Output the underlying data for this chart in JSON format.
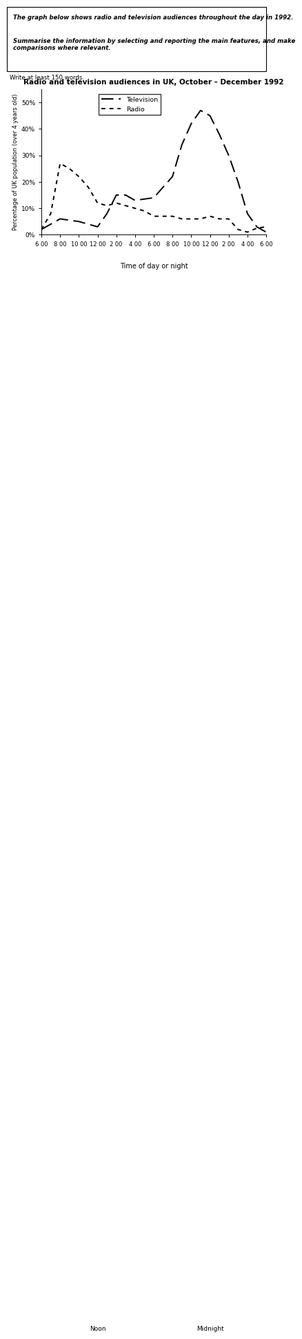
{
  "title": "Radio and television audiences in UK, October – December 1992",
  "xlabel": "Time of day or night",
  "ylabel": "Percentage of UK population (over 4 years old)",
  "prompt_text1": "The graph below shows radio and television audiences throughout the day in 1992.",
  "prompt_text2": "Summarise the information by selecting and reporting the main features, and make\ncomparisons where relevant.",
  "subtext": "Write at least 150 words.",
  "ylim": [
    0,
    55
  ],
  "yticks": [
    0,
    10,
    20,
    30,
    40,
    50
  ],
  "ytick_labels": [
    "0%",
    "10%",
    "20%",
    "30%",
    "40%",
    "50%"
  ],
  "tv_x_points": [
    0,
    0.5,
    1,
    1.5,
    2,
    2.5,
    3,
    3.5,
    4,
    4.5,
    5,
    5.5,
    6,
    6.5,
    7,
    7.5,
    8,
    8.5,
    9,
    9.5,
    10,
    10.5,
    11,
    11.5,
    12
  ],
  "tv_y_points": [
    2,
    4,
    6,
    5.5,
    5,
    4,
    3,
    8,
    15,
    15,
    13,
    13.5,
    14,
    18,
    22,
    34,
    42,
    47,
    45,
    38,
    30,
    20,
    8,
    3,
    1
  ],
  "radio_x_points": [
    0,
    0.5,
    1,
    1.5,
    2,
    2.5,
    3,
    3.5,
    4,
    4.5,
    5,
    5.5,
    6,
    6.5,
    7,
    7.5,
    8,
    8.5,
    9,
    9.5,
    10,
    10.5,
    11,
    11.5,
    12
  ],
  "radio_y_points": [
    2,
    8,
    27,
    25,
    22,
    18,
    12,
    11,
    12,
    11,
    10,
    9,
    7,
    7,
    7,
    6,
    6,
    6,
    7,
    6,
    6,
    2,
    1,
    2.5,
    3
  ],
  "line_color": "#000000"
}
